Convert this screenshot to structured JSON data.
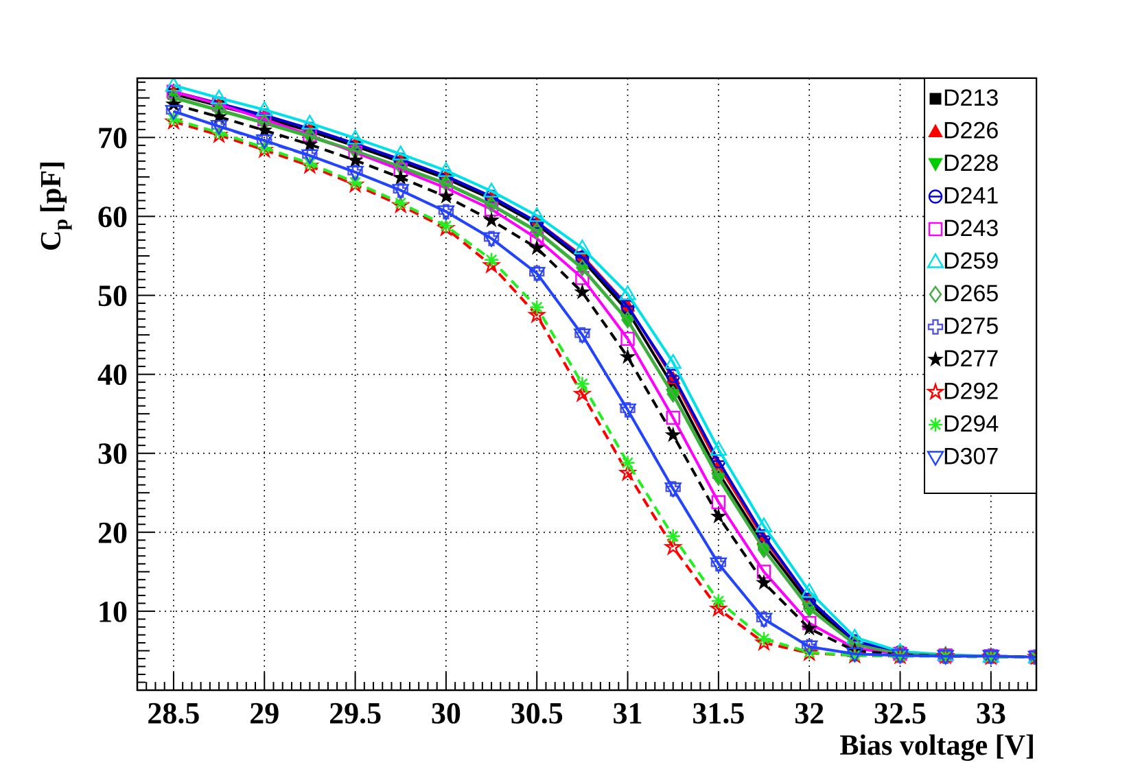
{
  "chart_data": {
    "type": "line",
    "title": "",
    "xlabel": "Bias voltage [V]",
    "ylabel_main": "C",
    "ylabel_sub": "p",
    "ylabel_unit": "[pF]",
    "xlim": [
      28.3,
      33.25
    ],
    "ylim": [
      0,
      77.5
    ],
    "grid": true,
    "legend_position": "top-right",
    "x_ticks": [
      28.5,
      29,
      29.5,
      30,
      30.5,
      31,
      31.5,
      32,
      32.5,
      33
    ],
    "x_tick_labels": [
      "28.5",
      "29",
      "29.5",
      "30",
      "30.5",
      "31",
      "31.5",
      "32",
      "32.5",
      "33"
    ],
    "y_ticks": [
      10,
      20,
      30,
      40,
      50,
      60,
      70
    ],
    "y_tick_labels": [
      "10",
      "20",
      "30",
      "40",
      "50",
      "60",
      "70"
    ],
    "x": [
      28.5,
      28.75,
      29,
      29.25,
      29.5,
      29.75,
      30,
      30.25,
      30.5,
      30.75,
      31,
      31.25,
      31.5,
      31.75,
      32,
      32.25,
      32.5,
      32.75,
      33,
      33.25
    ],
    "series": [
      {
        "name": "D213",
        "color": "#000000",
        "dash": "solid",
        "marker": "square-filled",
        "values": [
          75.5,
          74,
          72.5,
          70.8,
          68.9,
          66.9,
          64.8,
          62.2,
          59,
          54.5,
          48,
          38.5,
          27.5,
          18.5,
          11,
          6,
          4.7,
          4.4,
          4.3,
          4.2
        ]
      },
      {
        "name": "D226",
        "color": "#ff0000",
        "dash": "solid",
        "marker": "triangle-up-filled",
        "values": [
          75.8,
          74.3,
          72.8,
          71.1,
          69.2,
          67.2,
          65.1,
          62.5,
          59.3,
          55,
          48.7,
          39.5,
          28.5,
          19.2,
          11.5,
          6.2,
          4.8,
          4.4,
          4.3,
          4.2
        ]
      },
      {
        "name": "D228",
        "color": "#00cc00",
        "dash": "solid",
        "marker": "triangle-down-filled",
        "values": [
          75,
          73.4,
          71.8,
          70.1,
          68.2,
          66.2,
          64.1,
          61.4,
          58.1,
          53.4,
          46.8,
          37.4,
          26.8,
          17.8,
          10.4,
          5.8,
          4.6,
          4.4,
          4.3,
          4.2
        ]
      },
      {
        "name": "D241",
        "color": "#0000dd",
        "dash": "solid",
        "marker": "circle-open-bar",
        "values": [
          75.8,
          74.3,
          72.8,
          71.1,
          69.2,
          67.2,
          65.1,
          62.5,
          59.3,
          54.8,
          48.6,
          39.8,
          29,
          19.5,
          11.5,
          6.2,
          4.8,
          4.4,
          4.3,
          4.2
        ]
      },
      {
        "name": "D243",
        "color": "#ff00ff",
        "dash": "solid",
        "marker": "square-open",
        "values": [
          75.8,
          74.2,
          72.3,
          70.3,
          68.1,
          65.9,
          63.6,
          60.9,
          57.2,
          52.2,
          44.5,
          34.5,
          23.8,
          15,
          8.5,
          5.3,
          4.6,
          4.4,
          4.3,
          4.2
        ]
      },
      {
        "name": "D259",
        "color": "#00e0e8",
        "dash": "solid",
        "marker": "triangle-up-open",
        "values": [
          76.6,
          75,
          73.5,
          71.8,
          69.9,
          67.9,
          65.8,
          63.2,
          60.1,
          56,
          50.2,
          41.5,
          30.5,
          20.8,
          12.5,
          6.7,
          4.9,
          4.5,
          4.3,
          4.2
        ]
      },
      {
        "name": "D265",
        "color": "#44aa44",
        "dash": "solid",
        "marker": "diamond-open",
        "values": [
          75.1,
          73.5,
          71.9,
          70.2,
          68.3,
          66.3,
          64.2,
          61.5,
          58.2,
          53.5,
          46.9,
          37.5,
          27,
          17.8,
          10.3,
          5.8,
          4.6,
          4.4,
          4.3,
          4.2
        ]
      },
      {
        "name": "D275",
        "color": "#5555dd",
        "dash": "dashed",
        "marker": "cross-open",
        "values": [
          73.3,
          71.4,
          69.5,
          67.7,
          65.6,
          63.3,
          60.6,
          57.2,
          52.8,
          45,
          35.5,
          25.5,
          16,
          9,
          5.5,
          4.6,
          4.4,
          4.3,
          4.3,
          4.2
        ]
      },
      {
        "name": "D277",
        "color": "#000000",
        "dash": "dashed",
        "marker": "star-filled",
        "values": [
          74.2,
          72.6,
          70.9,
          69.1,
          67.1,
          64.9,
          62.5,
          59.5,
          56,
          50.4,
          42.2,
          32.3,
          22,
          13.6,
          7.8,
          5,
          4.5,
          4.3,
          4.3,
          4.2
        ]
      },
      {
        "name": "D292",
        "color": "#ff0000",
        "dash": "dashed",
        "marker": "star-open",
        "values": [
          72,
          70.3,
          68.4,
          66.4,
          64,
          61.4,
          58.5,
          53.8,
          47.5,
          37.5,
          27.5,
          18.1,
          10.3,
          6,
          4.7,
          4.4,
          4.3,
          4.3,
          4.2,
          4.2
        ]
      },
      {
        "name": "D294",
        "color": "#22ee22",
        "dash": "dashed",
        "marker": "asterisk",
        "values": [
          72.3,
          70.6,
          68.7,
          66.7,
          64.3,
          61.7,
          58.8,
          54.5,
          48.5,
          38.8,
          28.8,
          19.5,
          11.3,
          6.5,
          4.8,
          4.4,
          4.3,
          4.3,
          4.2,
          4.2
        ]
      },
      {
        "name": "D307",
        "color": "#2244ff",
        "dash": "solid",
        "marker": "triangle-down-open",
        "values": [
          73.3,
          71.4,
          69.6,
          67.7,
          65.6,
          63.3,
          60.6,
          57.2,
          52.8,
          45,
          35.5,
          25.5,
          16,
          9,
          5.5,
          4.6,
          4.4,
          4.3,
          4.3,
          4.2
        ]
      }
    ]
  }
}
